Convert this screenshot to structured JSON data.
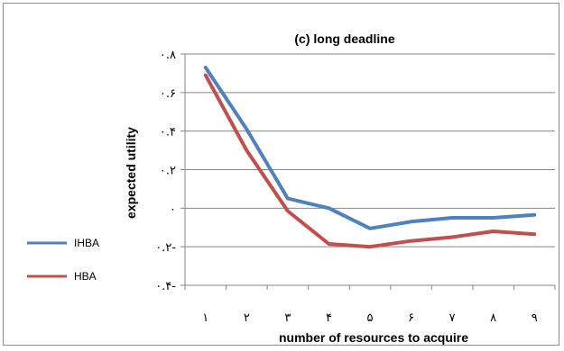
{
  "chart_data": {
    "type": "line",
    "title": "(c) long deadline",
    "xlabel": "number of resources to acquire",
    "ylabel": "expected utility",
    "categories": [
      "١",
      "٢",
      "٣",
      "۴",
      "۵",
      "۶",
      "٧",
      "٨",
      "٩"
    ],
    "x": [
      1,
      2,
      3,
      4,
      5,
      6,
      7,
      8,
      9
    ],
    "ylim": [
      -0.4,
      0.8
    ],
    "yticks": [
      -0.4,
      -0.2,
      0,
      0.2,
      0.4,
      0.6,
      0.8
    ],
    "ytick_labels": [
      "۰.۴-",
      "۰.۲-",
      "۰",
      "۰.۲",
      "۰.۴",
      "۰.۶",
      "۰.۸"
    ],
    "grid": "horizontal",
    "legend": "left",
    "series": [
      {
        "name": "IHBA",
        "color": "#4F81BD",
        "values": [
          0.73,
          0.41,
          0.05,
          0.0,
          -0.105,
          -0.07,
          -0.05,
          -0.05,
          -0.035
        ]
      },
      {
        "name": "HBA",
        "color": "#C0504D",
        "values": [
          0.69,
          0.3,
          -0.015,
          -0.185,
          -0.2,
          -0.17,
          -0.15,
          -0.12,
          -0.135
        ]
      }
    ]
  }
}
